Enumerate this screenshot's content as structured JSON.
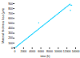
{
  "chart_data": {
    "type": "scatter",
    "xlabel": "time (h)",
    "ylabel": "Material thickness loss (µm)",
    "x": [
      100,
      300,
      500,
      700,
      900,
      1100,
      1300,
      1500,
      1700,
      1900,
      2100,
      2300,
      2500,
      2700,
      2900,
      3100,
      3300,
      3500,
      3700,
      3900,
      4100,
      4300,
      4500,
      4700,
      4900,
      5100,
      5300,
      5500,
      5700,
      5900,
      6100,
      6300,
      6500,
      6700,
      6900,
      7100,
      7300,
      7500,
      7700,
      7900,
      8100,
      8300,
      8500,
      8700,
      8900,
      9100,
      9300,
      9500,
      9700,
      9900,
      10100,
      10300,
      10500,
      10700,
      10900,
      11100,
      11300,
      11500,
      11700,
      11900,
      12100,
      12300,
      12500,
      12700,
      12900,
      13100,
      5500,
      12800
    ],
    "values": [
      7,
      21,
      35,
      49,
      63,
      77,
      91,
      105,
      119,
      133,
      147,
      161,
      175,
      189,
      203,
      217,
      231,
      245,
      259,
      273,
      287,
      301,
      315,
      329,
      343,
      357,
      371,
      385,
      399,
      413,
      427,
      441,
      455,
      469,
      483,
      497,
      511,
      525,
      539,
      553,
      567,
      581,
      595,
      609,
      623,
      637,
      651,
      665,
      679,
      693,
      707,
      721,
      735,
      749,
      763,
      777,
      791,
      805,
      819,
      833,
      847,
      861,
      875,
      889,
      870,
      870,
      510,
      760
    ],
    "color": "#00ccff",
    "xlim": [
      0,
      14000
    ],
    "ylim": [
      0,
      900
    ],
    "xticks": [
      0,
      2000,
      4000,
      6000,
      8000,
      10000,
      12000,
      14000
    ],
    "yticks": [
      0,
      100,
      200,
      300,
      400,
      500,
      600,
      700,
      800,
      900
    ],
    "grid": false
  }
}
